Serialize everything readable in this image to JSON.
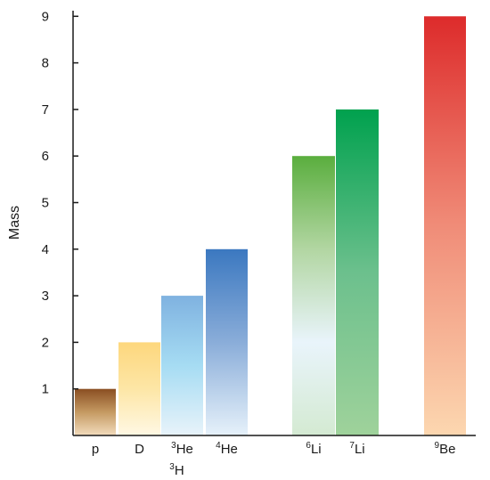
{
  "chart_data": {
    "type": "bar",
    "ylabel": "Mass",
    "xlabel": "",
    "ylim": [
      0,
      9
    ],
    "yticks": [
      1,
      2,
      3,
      4,
      5,
      6,
      7,
      8,
      9
    ],
    "grid": false,
    "bars": [
      {
        "label": "p",
        "sup": "",
        "second_label": "",
        "second_sup": "",
        "value": 1,
        "colors": [
          "#8a4e22",
          "#c59a62",
          "#f2dcbd"
        ]
      },
      {
        "label": "D",
        "sup": "",
        "second_label": "",
        "second_sup": "",
        "value": 2,
        "colors": [
          "#fdd77d",
          "#fde6a6",
          "#fff8e4"
        ]
      },
      {
        "label": "He",
        "sup": "3",
        "second_label": "H",
        "second_sup": "3",
        "value": 3,
        "colors": [
          "#7fb2e0",
          "#a6dcf3",
          "#e8f3fa"
        ]
      },
      {
        "label": "He",
        "sup": "4",
        "second_label": "",
        "second_sup": "",
        "value": 4,
        "colors": [
          "#3b78c0",
          "#8aadd9",
          "#e6f1fa"
        ]
      },
      {
        "label": "Li",
        "sup": "6",
        "second_label": "",
        "second_sup": "",
        "value": 6,
        "colors": [
          "#5aae3e",
          "#b2d6a2",
          "#e9f4fb",
          "#d4ead2"
        ]
      },
      {
        "label": "Li",
        "sup": "7",
        "second_label": "",
        "second_sup": "",
        "value": 7,
        "colors": [
          "#00a14e",
          "#6cc08d",
          "#9fd29b"
        ]
      },
      {
        "label": "Be",
        "sup": "9",
        "second_label": "",
        "second_sup": "",
        "value": 9,
        "colors": [
          "#dd2b2b",
          "#f08c78",
          "#fcd7b0"
        ]
      }
    ]
  }
}
